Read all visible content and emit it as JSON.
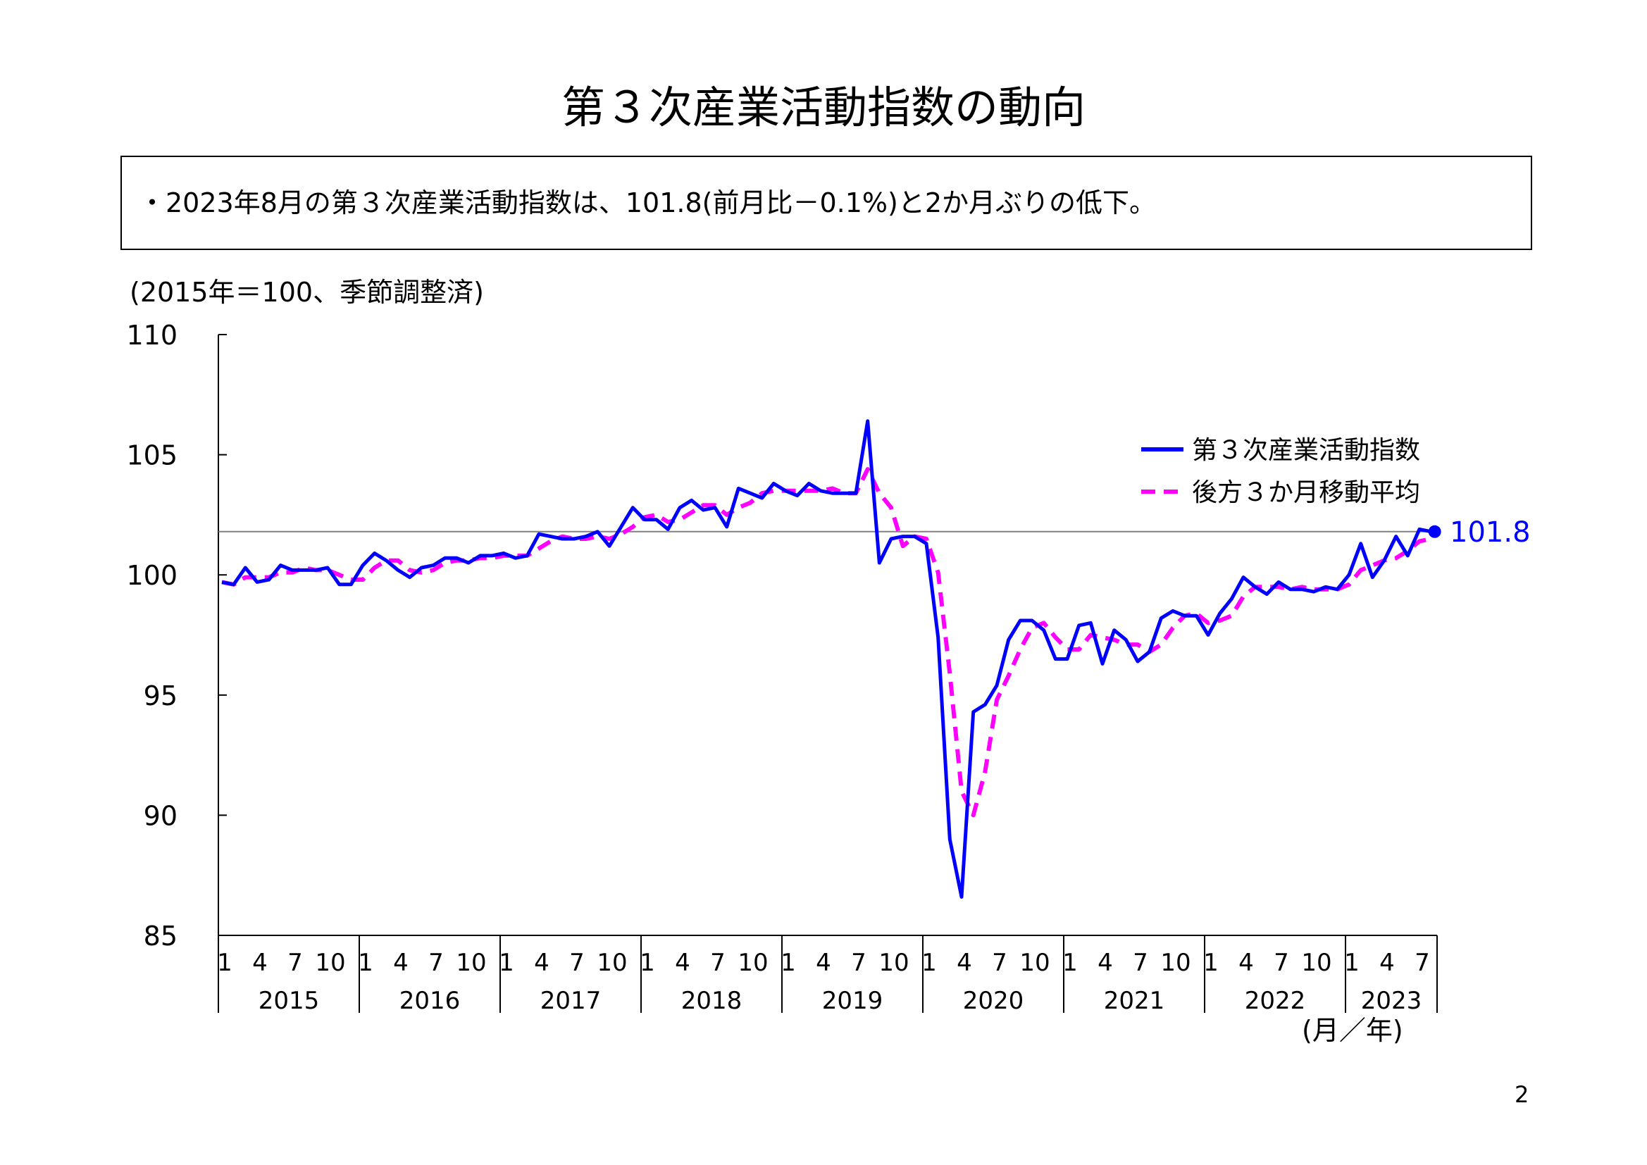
{
  "title": "第３次産業活動指数の動向",
  "summary": "・2023年8月の第３次産業活動指数は、101.8(前月比－0.1%)と2か月ぶりの低下。",
  "unit_note": "(2015年＝100、季節調整済)",
  "x_axis_unit": "(月／年)",
  "page_number": "2",
  "colors": {
    "index": "#0000ff",
    "moving_average": "#ff00ff",
    "reference_line": "#808080",
    "axis": "#000000"
  },
  "chart_data": {
    "type": "line",
    "y_ticks": [
      "85",
      "90",
      "95",
      "100",
      "105",
      "110"
    ],
    "ylim": [
      85,
      110
    ],
    "years": [
      "2015",
      "2016",
      "2017",
      "2018",
      "2019",
      "2020",
      "2021",
      "2022",
      "2023"
    ],
    "month_ticks": [
      "1",
      "4",
      "7",
      "10"
    ],
    "last_year_month_ticks": [
      "1",
      "4",
      "7"
    ],
    "x_start": "2015-01",
    "x_end": "2023-08",
    "reference_value": 101.8,
    "last_point_label": "101.8",
    "series": [
      {
        "name": "第３次産業活動指数",
        "values": [
          99.7,
          99.6,
          100.3,
          99.7,
          99.8,
          100.4,
          100.2,
          100.2,
          100.2,
          100.3,
          99.6,
          99.6,
          100.4,
          100.9,
          100.6,
          100.2,
          99.9,
          100.3,
          100.4,
          100.7,
          100.7,
          100.5,
          100.8,
          100.8,
          100.9,
          100.7,
          100.8,
          101.7,
          101.6,
          101.5,
          101.5,
          101.6,
          101.8,
          101.2,
          102.0,
          102.8,
          102.3,
          102.3,
          101.9,
          102.8,
          103.1,
          102.7,
          102.8,
          102.0,
          103.6,
          103.4,
          103.2,
          103.8,
          103.5,
          103.3,
          103.8,
          103.5,
          103.4,
          103.4,
          103.4,
          106.4,
          100.5,
          101.5,
          101.6,
          101.6,
          101.3,
          97.4,
          89.0,
          86.6,
          94.3,
          94.6,
          95.4,
          97.3,
          98.1,
          98.1,
          97.7,
          96.5,
          96.5,
          97.9,
          98.0,
          96.3,
          97.7,
          97.3,
          96.4,
          96.8,
          98.2,
          98.5,
          98.3,
          98.3,
          97.5,
          98.4,
          99.0,
          99.9,
          99.5,
          99.2,
          99.7,
          99.4,
          99.4,
          99.3,
          99.5,
          99.4,
          100.0,
          101.3,
          99.9,
          100.6,
          101.6,
          100.8,
          101.9,
          101.8
        ]
      },
      {
        "name": "後方３か月移動平均",
        "values": [
          99.7,
          99.6,
          99.9,
          99.9,
          99.9,
          100.1,
          100.1,
          100.3,
          100.2,
          100.2,
          100.0,
          99.8,
          99.8,
          100.3,
          100.6,
          100.6,
          100.2,
          100.1,
          100.2,
          100.5,
          100.6,
          100.6,
          100.7,
          100.7,
          100.8,
          100.8,
          100.8,
          101.1,
          101.4,
          101.6,
          101.5,
          101.5,
          101.6,
          101.5,
          101.7,
          102.0,
          102.4,
          102.5,
          102.2,
          102.3,
          102.6,
          102.9,
          102.9,
          102.5,
          102.8,
          103.0,
          103.4,
          103.5,
          103.5,
          103.5,
          103.5,
          103.5,
          103.6,
          103.4,
          103.4,
          104.4,
          103.4,
          102.8,
          101.2,
          101.6,
          101.5,
          100.1,
          95.9,
          91.0,
          90.0,
          91.8,
          94.8,
          95.8,
          96.9,
          97.8,
          98.0,
          97.4,
          96.9,
          96.9,
          97.5,
          97.4,
          97.3,
          97.1,
          97.1,
          96.8,
          97.1,
          97.8,
          98.3,
          98.4,
          98.0,
          98.1,
          98.3,
          99.1,
          99.5,
          99.5,
          99.5,
          99.4,
          99.5,
          99.4,
          99.4,
          99.4,
          99.6,
          100.2,
          100.4,
          100.6,
          100.7,
          101.0,
          101.4,
          101.5
        ]
      }
    ]
  }
}
